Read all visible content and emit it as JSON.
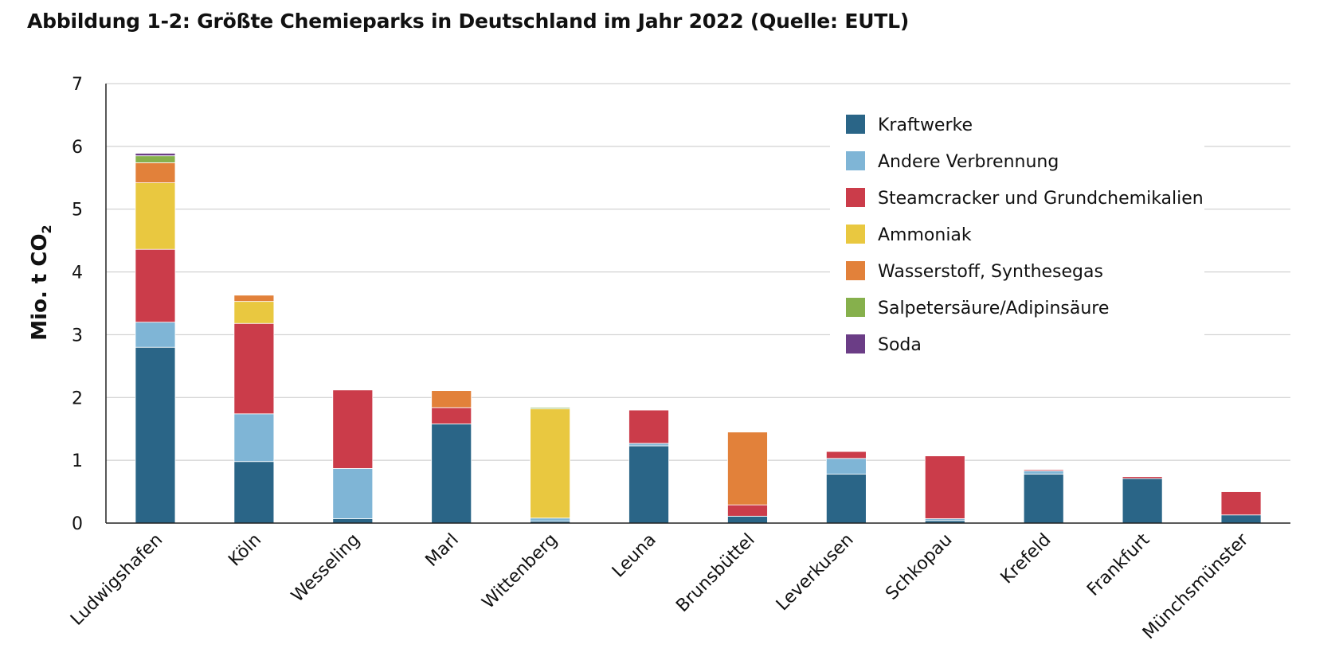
{
  "chart_data": {
    "type": "bar",
    "stacked": true,
    "title": "Abbildung 1-2: Größte Chemieparks in Deutschland im Jahr 2022 (Quelle: EUTL)",
    "ylabel": "Mio. t CO",
    "ylabel_sub": "2",
    "ylim": [
      0,
      7
    ],
    "yticks": [
      "0",
      "1",
      "2",
      "3",
      "4",
      "5",
      "6",
      "7"
    ],
    "grid": true,
    "legend_position": "top-right",
    "categories": [
      "Ludwigshafen",
      "Köln",
      "Wesseling",
      "Marl",
      "Wittenberg",
      "Leuna",
      "Brunsbüttel",
      "Leverkusen",
      "Schkopau",
      "Krefeld",
      "Frankfurt",
      "Münchsmünster"
    ],
    "series": [
      {
        "name": "Kraftwerke",
        "color": "#2a6587",
        "values": [
          2.8,
          0.98,
          0.07,
          1.58,
          0.03,
          1.23,
          0.11,
          0.78,
          0.04,
          0.78,
          0.71,
          0.13
        ]
      },
      {
        "name": "Andere Verbrennung",
        "color": "#7fb5d6",
        "values": [
          0.4,
          0.76,
          0.8,
          0.0,
          0.05,
          0.04,
          0.0,
          0.25,
          0.03,
          0.05,
          0.0,
          0.0
        ]
      },
      {
        "name": "Steamcracker und Grundchemikalien",
        "color": "#cb3c4a",
        "values": [
          1.16,
          1.44,
          1.25,
          0.26,
          0.0,
          0.53,
          0.18,
          0.11,
          1.0,
          0.02,
          0.03,
          0.37
        ]
      },
      {
        "name": "Ammoniak",
        "color": "#e9c840",
        "values": [
          1.06,
          0.35,
          0.0,
          0.0,
          1.74,
          0.0,
          0.0,
          0.0,
          0.0,
          0.0,
          0.0,
          0.0
        ]
      },
      {
        "name": "Wasserstoff, Synthesegas",
        "color": "#e2813a",
        "values": [
          0.32,
          0.1,
          0.0,
          0.27,
          0.0,
          0.0,
          1.16,
          0.0,
          0.0,
          0.0,
          0.0,
          0.0
        ]
      },
      {
        "name": "Salpetersäure/Adipinsäure",
        "color": "#86b04c",
        "values": [
          0.11,
          0.0,
          0.0,
          0.0,
          0.02,
          0.0,
          0.0,
          0.0,
          0.0,
          0.0,
          0.0,
          0.0
        ]
      },
      {
        "name": "Soda",
        "color": "#6b3d86",
        "values": [
          0.04,
          0.0,
          0.0,
          0.0,
          0.0,
          0.0,
          0.0,
          0.0,
          0.0,
          0.0,
          0.0,
          0.0
        ]
      }
    ]
  }
}
